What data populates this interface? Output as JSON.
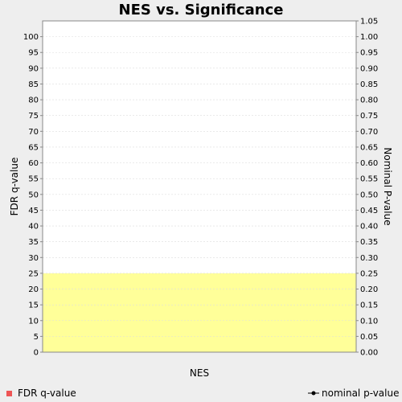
{
  "chart_data": {
    "type": "line",
    "title": "NES vs. Significance",
    "xlabel": "NES",
    "ylabel_left": "FDR q-value",
    "ylabel_right": "Nominal P-value",
    "ylim_left": [
      0,
      105
    ],
    "ylim_right": [
      0,
      1.05
    ],
    "yticks_left": [
      "0",
      "5",
      "10",
      "15",
      "20",
      "25",
      "30",
      "35",
      "40",
      "45",
      "50",
      "55",
      "60",
      "65",
      "70",
      "75",
      "80",
      "85",
      "90",
      "95",
      "100"
    ],
    "yticks_right": [
      "0.00",
      "0.05",
      "0.10",
      "0.15",
      "0.20",
      "0.25",
      "0.30",
      "0.35",
      "0.40",
      "0.45",
      "0.50",
      "0.55",
      "0.60",
      "0.65",
      "0.70",
      "0.75",
      "0.80",
      "0.85",
      "0.90",
      "0.95",
      "1.00",
      "1.05"
    ],
    "grid": true,
    "highlight_band_left": [
      0,
      25
    ],
    "series": [
      {
        "name": "FDR q-value",
        "axis": "left",
        "marker": "square",
        "values": []
      },
      {
        "name": "nominal p-value",
        "axis": "right",
        "marker": "circle-line",
        "values": []
      }
    ],
    "legend_position": "bottom",
    "colors": {
      "background": "#eeeeee",
      "plot_background": "#ffffff",
      "band": "#ffff99",
      "grid": "#dddddd",
      "fdr": "#ee5555",
      "pvalue": "#000000"
    }
  }
}
